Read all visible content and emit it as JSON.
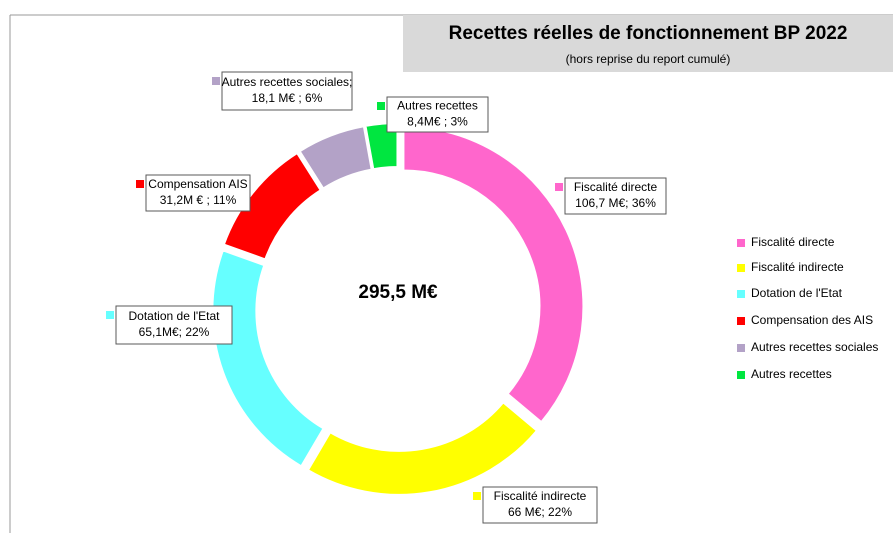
{
  "chart_data": {
    "type": "donut",
    "title": "Recettes réelles de fonctionnement BP 2022",
    "subtitle": "(hors reprise du report cumulé)",
    "center_label": "295,5 M€",
    "categories": [
      "Fiscalité directe",
      "Fiscalité indirecte",
      "Dotation de l'Etat",
      "Compensation des AIS",
      "Autres recettes sociales",
      "Autres recettes"
    ],
    "values": [
      106.7,
      66,
      65.1,
      31.2,
      18.1,
      8.4
    ],
    "label_names": [
      "Fiscalité directe",
      "Fiscalité indirecte",
      "Dotation de l'Etat",
      "Compensation AIS",
      "Autres recettes sociales;",
      "Autres recettes"
    ],
    "value_labels": [
      "106,7 M€; 36%",
      "66 M€; 22%",
      "65,1M€; 22%",
      "31,2M € ; 11%",
      "18,1 M€ ; 6%",
      "8,4M€ ; 3%"
    ],
    "colors": [
      "#ff66cc",
      "#ffff00",
      "#66ffff",
      "#ff0000",
      "#b3a2c7",
      "#00e640"
    ],
    "legend": "right"
  }
}
